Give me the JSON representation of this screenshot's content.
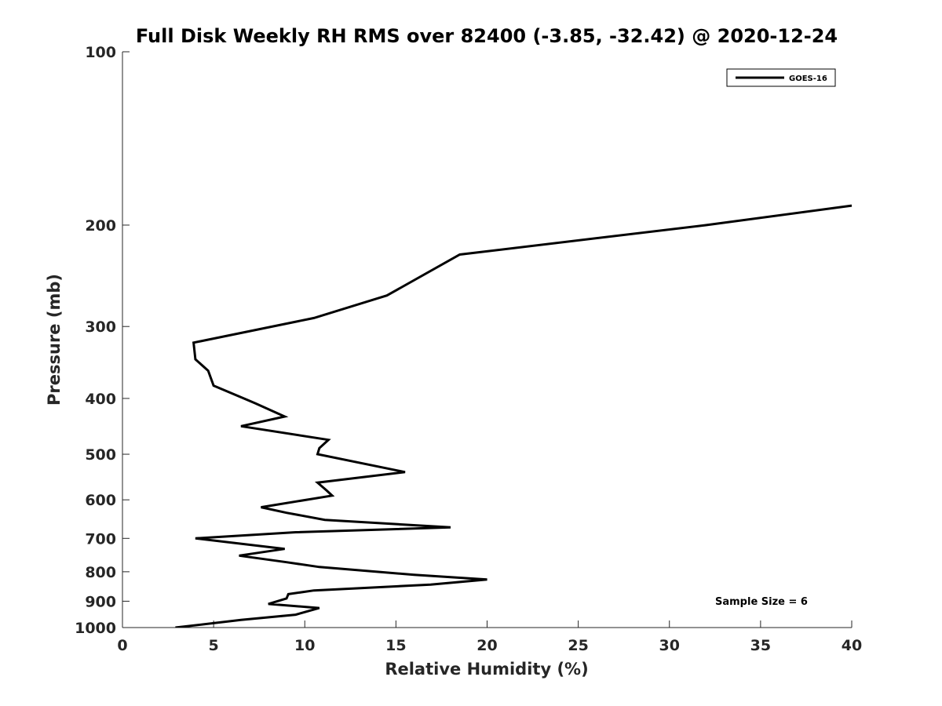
{
  "chart_data": {
    "type": "line",
    "title": "Full Disk Weekly RH RMS over 82400 (-3.85, -32.42) @ 2020-12-24",
    "xlabel": "Relative Humidity (%)",
    "ylabel": "Pressure (mb)",
    "xlim": [
      0,
      40
    ],
    "ylim": [
      100,
      1000
    ],
    "y_scale": "log",
    "y_reversed": true,
    "x_ticks": [
      0,
      5,
      10,
      15,
      20,
      25,
      30,
      35,
      40
    ],
    "x_tick_labels": [
      "0",
      "5",
      "10",
      "15",
      "20",
      "25",
      "30",
      "35",
      "40"
    ],
    "y_ticks": [
      100,
      200,
      300,
      400,
      500,
      600,
      700,
      800,
      900,
      1000
    ],
    "y_tick_labels": [
      "100",
      "200",
      "300",
      "400",
      "500",
      "600",
      "700",
      "800",
      "900",
      "1000"
    ],
    "grid": false,
    "legend": {
      "position": "top-right",
      "entries": [
        "GOES-16"
      ]
    },
    "annotation": "Sample Size = 6",
    "line_color": "#000000",
    "series": [
      {
        "name": "GOES-16",
        "points": [
          [
            40.0,
            185
          ],
          [
            32.0,
            200
          ],
          [
            18.5,
            225
          ],
          [
            14.5,
            265
          ],
          [
            10.5,
            290
          ],
          [
            3.9,
            320
          ],
          [
            4.0,
            342
          ],
          [
            4.7,
            358
          ],
          [
            5.0,
            380
          ],
          [
            7.3,
            408
          ],
          [
            8.9,
            430
          ],
          [
            6.5,
            447
          ],
          [
            11.3,
            472
          ],
          [
            10.8,
            488
          ],
          [
            10.7,
            500
          ],
          [
            15.5,
            537
          ],
          [
            10.7,
            560
          ],
          [
            11.2,
            578
          ],
          [
            11.5,
            590
          ],
          [
            7.6,
            618
          ],
          [
            9.0,
            632
          ],
          [
            11.1,
            650
          ],
          [
            18.0,
            670
          ],
          [
            9.5,
            683
          ],
          [
            4.0,
            700
          ],
          [
            8.9,
            730
          ],
          [
            6.4,
            750
          ],
          [
            9.0,
            770
          ],
          [
            10.8,
            785
          ],
          [
            16.0,
            810
          ],
          [
            20.0,
            825
          ],
          [
            16.9,
            842
          ],
          [
            10.5,
            862
          ],
          [
            9.1,
            875
          ],
          [
            9.0,
            890
          ],
          [
            8.0,
            910
          ],
          [
            10.8,
            925
          ],
          [
            9.5,
            950
          ],
          [
            6.5,
            970
          ],
          [
            2.9,
            1000
          ]
        ]
      }
    ]
  }
}
